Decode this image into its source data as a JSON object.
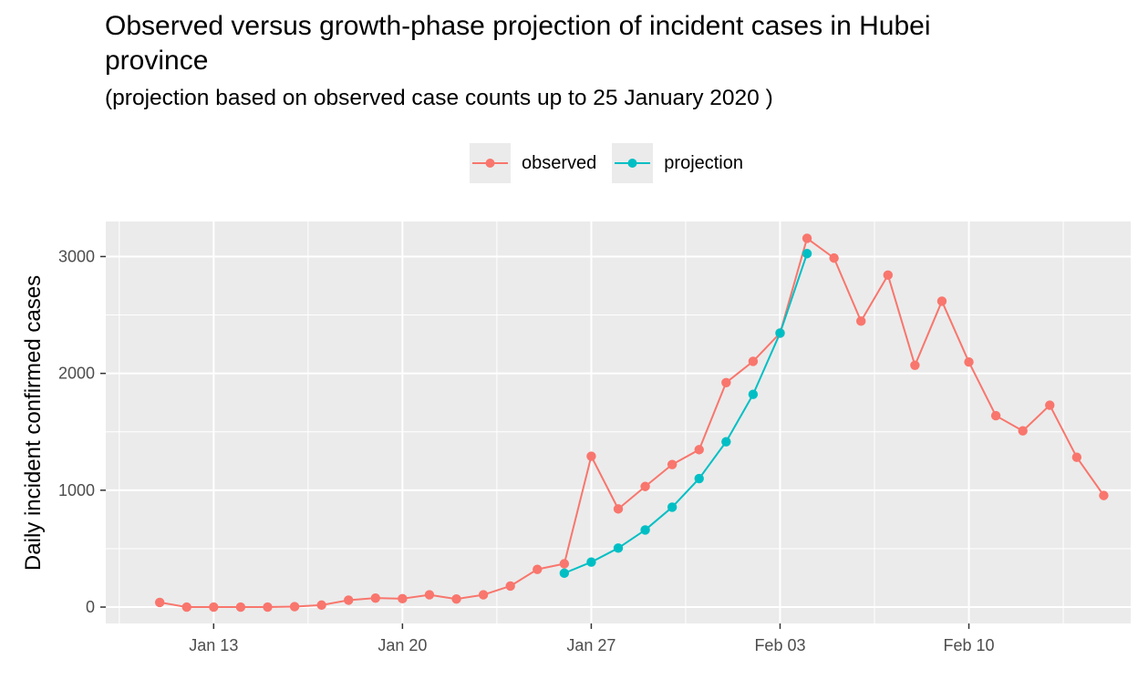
{
  "chart_data": {
    "type": "line",
    "title": "Observed versus growth-phase projection of incident cases in Hubei province",
    "subtitle": "(projection based on observed case counts up to 25 January 2020 )",
    "xlabel": "",
    "ylabel": "Daily incident confirmed cases",
    "ylim": [
      -140,
      3300
    ],
    "xlim": [
      "2020-01-09",
      "2020-02-16"
    ],
    "x_ticks": [
      {
        "date": "2020-01-13",
        "label": "Jan 13"
      },
      {
        "date": "2020-01-20",
        "label": "Jan 20"
      },
      {
        "date": "2020-01-27",
        "label": "Jan 27"
      },
      {
        "date": "2020-02-03",
        "label": "Feb 03"
      },
      {
        "date": "2020-02-10",
        "label": "Feb 10"
      }
    ],
    "y_ticks": [
      0,
      1000,
      2000,
      3000
    ],
    "grid": true,
    "legend_position": "top",
    "series": [
      {
        "name": "observed",
        "color": "#F8766D",
        "x": [
          "2020-01-11",
          "2020-01-12",
          "2020-01-13",
          "2020-01-14",
          "2020-01-15",
          "2020-01-16",
          "2020-01-17",
          "2020-01-18",
          "2020-01-19",
          "2020-01-20",
          "2020-01-21",
          "2020-01-22",
          "2020-01-23",
          "2020-01-24",
          "2020-01-25",
          "2020-01-26",
          "2020-01-27",
          "2020-01-28",
          "2020-01-29",
          "2020-01-30",
          "2020-01-31",
          "2020-02-01",
          "2020-02-02",
          "2020-02-03",
          "2020-02-04",
          "2020-02-05",
          "2020-02-06",
          "2020-02-07",
          "2020-02-08",
          "2020-02-09",
          "2020-02-10",
          "2020-02-11",
          "2020-02-12",
          "2020-02-13",
          "2020-02-14",
          "2020-02-15"
        ],
        "values": [
          40,
          0,
          0,
          0,
          0,
          4,
          17,
          59,
          77,
          72,
          105,
          69,
          105,
          180,
          323,
          371,
          1291,
          840,
          1032,
          1220,
          1347,
          1921,
          2103,
          2345,
          3156,
          2987,
          2447,
          2841,
          2069,
          2618,
          2097,
          1638,
          1508,
          1728,
          1282,
          955
        ]
      },
      {
        "name": "projection",
        "color": "#00BFC4",
        "x": [
          "2020-01-26",
          "2020-01-27",
          "2020-01-28",
          "2020-01-29",
          "2020-01-30",
          "2020-01-31",
          "2020-02-01",
          "2020-02-02",
          "2020-02-03",
          "2020-02-04"
        ],
        "values": [
          290,
          385,
          505,
          660,
          855,
          1100,
          1415,
          1820,
          2345,
          3025
        ]
      }
    ]
  }
}
